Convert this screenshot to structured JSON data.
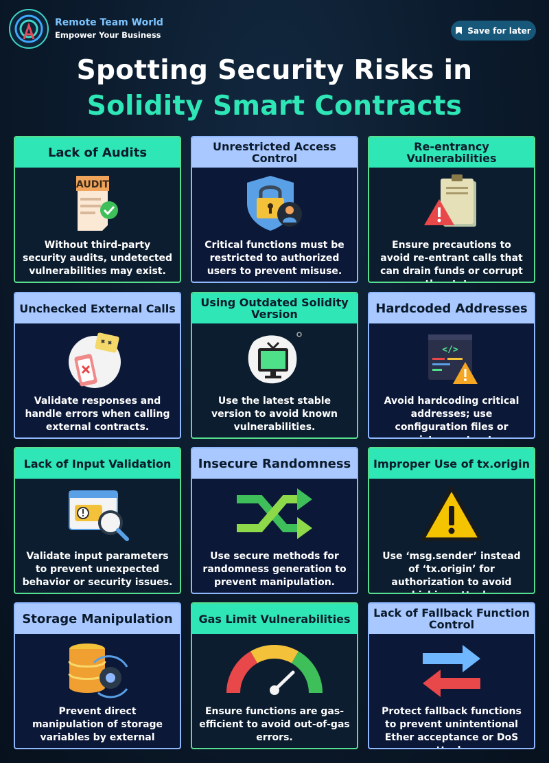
{
  "brand": {
    "name": "Remote Team World",
    "tagline": "Empower Your Business"
  },
  "save_button": {
    "label": "Save for later"
  },
  "title": {
    "line1": "Spotting Security Risks in",
    "line2": "Solidity Smart Contracts"
  },
  "colors": {
    "accent_green": "#2ee6b6",
    "accent_blue": "#a8c8ff",
    "background": "#0b1a2b"
  },
  "cards": [
    {
      "title": "Lack of Audits",
      "icon": "audit-document-icon",
      "icon_label": "AUDIT",
      "description": "Without third-party security audits, undetected vulnerabilities may exist."
    },
    {
      "title": "Unrestricted Access Control",
      "icon": "lock-shield-user-icon",
      "description": "Critical functions must be restricted to authorized users to prevent misuse."
    },
    {
      "title": "Re-entrancy Vulnerabilities",
      "icon": "clipboard-warning-icon",
      "description": "Ensure precautions to avoid re-entrant calls that can drain funds or corrupt the state."
    },
    {
      "title": "Unchecked External Calls",
      "icon": "phone-error-icon",
      "description": "Validate responses and handle errors when calling external contracts."
    },
    {
      "title": "Using Outdated Solidity Version",
      "icon": "old-tv-icon",
      "description": "Use the latest stable version to avoid known vulnerabilities."
    },
    {
      "title": "Hardcoded Addresses",
      "icon": "code-warning-icon",
      "icon_label": "</>",
      "description": "Avoid hardcoding critical addresses; use configuration files or registry contracts."
    },
    {
      "title": "Lack of Input Validation",
      "icon": "window-magnifier-icon",
      "description": "Validate input parameters to prevent unexpected behavior or security issues."
    },
    {
      "title": "Insecure Randomness",
      "icon": "shuffle-icon",
      "description": "Use secure methods for randomness generation to prevent manipulation."
    },
    {
      "title": "Improper Use of tx.origin",
      "icon": "warning-triangle-icon",
      "description": "Use ‘msg.sender’ instead of ‘tx.origin’ for authorization to avoid phishing attacks."
    },
    {
      "title": "Storage Manipulation",
      "icon": "database-gear-icon",
      "description": "Prevent direct manipulation of storage variables by external users."
    },
    {
      "title": "Gas Limit Vulnerabilities",
      "icon": "gauge-icon",
      "description": "Ensure functions are gas-efficient to avoid out-of-gas errors."
    },
    {
      "title": "Lack of Fallback Function Control",
      "icon": "swap-arrows-icon",
      "description": "Protect fallback functions to prevent unintentional Ether acceptance or DoS attacks."
    }
  ]
}
